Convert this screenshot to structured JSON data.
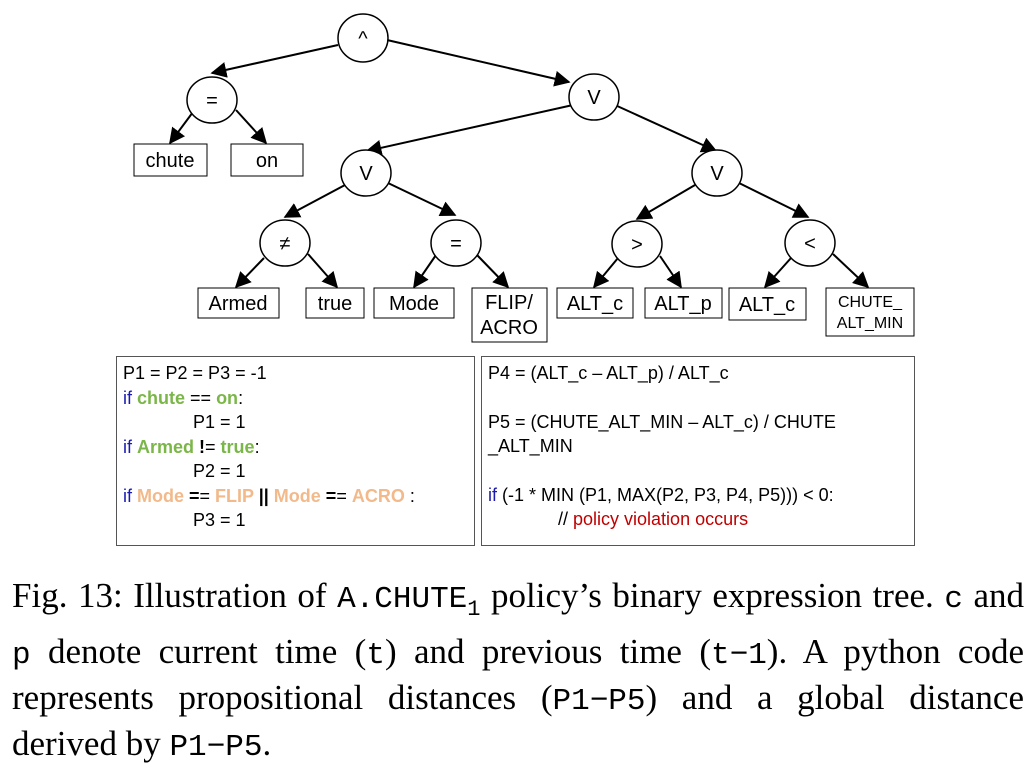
{
  "tree": {
    "root": "^",
    "eq_top": "=",
    "leaf_chute": "chute",
    "leaf_on": "on",
    "or_top": "V",
    "or_left": "V",
    "or_right": "V",
    "neq": "≠",
    "leaf_armed": "Armed",
    "leaf_true": "true",
    "eq_mode": "=",
    "leaf_mode": "Mode",
    "leaf_flip_1": "FLIP/",
    "leaf_flip_2": "ACRO",
    "gt": ">",
    "leaf_altc_1": "ALT_c",
    "leaf_altp": "ALT_p",
    "lt": "<",
    "leaf_altc_2": "ALT_c",
    "leaf_chute_alt_1": "CHUTE_",
    "leaf_chute_alt_2": "ALT_MIN"
  },
  "code_left": {
    "l1": "P1 = P2 = P3 = -1",
    "l2_if": "if ",
    "l2_chute": "chute",
    "l2_op": " == ",
    "l2_on": "on",
    "l2_end": ":",
    "l3": "P1 = 1",
    "l4_if": "if ",
    "l4_armed": "Armed",
    "l4_op_bold": " !",
    "l4_op": "= ",
    "l4_true": "true",
    "l4_end": ":",
    "l5": "P2 = 1",
    "l6_if": "if ",
    "l6_mode1": "Mode",
    "l6_op1_bold": " =",
    "l6_op1": "= ",
    "l6_flip": "FLIP",
    "l6_or": " || ",
    "l6_mode2": "Mode",
    "l6_op2_bold": " =",
    "l6_op2": "= ",
    "l6_acro": "ACRO",
    "l6_end": " :",
    "l7": "P3 = 1"
  },
  "code_right": {
    "l1": "P4 = (ALT_c – ALT_p) / ALT_c",
    "l3": "P5 = (CHUTE_ALT_MIN – ALT_c) / CHUTE",
    "l4": "_ALT_MIN",
    "l6_if": "if",
    "l6_rest": " (-1 * MIN (P1, MAX(P2, P3, P4, P5))) < 0:",
    "l7_comment": "// ",
    "l7_red": "policy violation occurs"
  },
  "caption": {
    "t1": "Fig. 13: Illustration of ",
    "m1": "A.CHUTE",
    "sub1": "1",
    "t2": " policy’s binary expression tree. ",
    "m2": "c",
    "t3": " and ",
    "m3": "p",
    "t4": " denote current time (",
    "m4": "t",
    "t5": ") and previous time (",
    "m5": "t−1",
    "t6": "). A python code represents propositional distances (",
    "m6": "P1−P5",
    "t7": ") and a global distance derived by ",
    "m7": "P1−P5",
    "t8": "."
  }
}
